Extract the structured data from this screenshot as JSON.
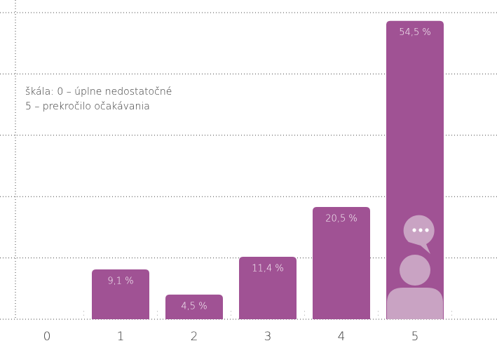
{
  "chart_data": {
    "type": "bar",
    "annotations": [
      "škála: 0 – úplne nedostatočné",
      "5 – prekročilo očakávania"
    ],
    "categories": [
      "0",
      "1",
      "2",
      "3",
      "4",
      "5"
    ],
    "values": [
      0,
      9.1,
      4.5,
      11.4,
      20.5,
      54.5
    ],
    "value_labels": [
      null,
      "9,1 %",
      "4,5 %",
      "11,4 %",
      "20,5 %",
      "54,5 %"
    ],
    "color": "#a05294",
    "ylim": [
      0,
      56
    ],
    "yticks": [
      0,
      11.2,
      22.4,
      33.6,
      44.8,
      56
    ],
    "grid": true
  }
}
